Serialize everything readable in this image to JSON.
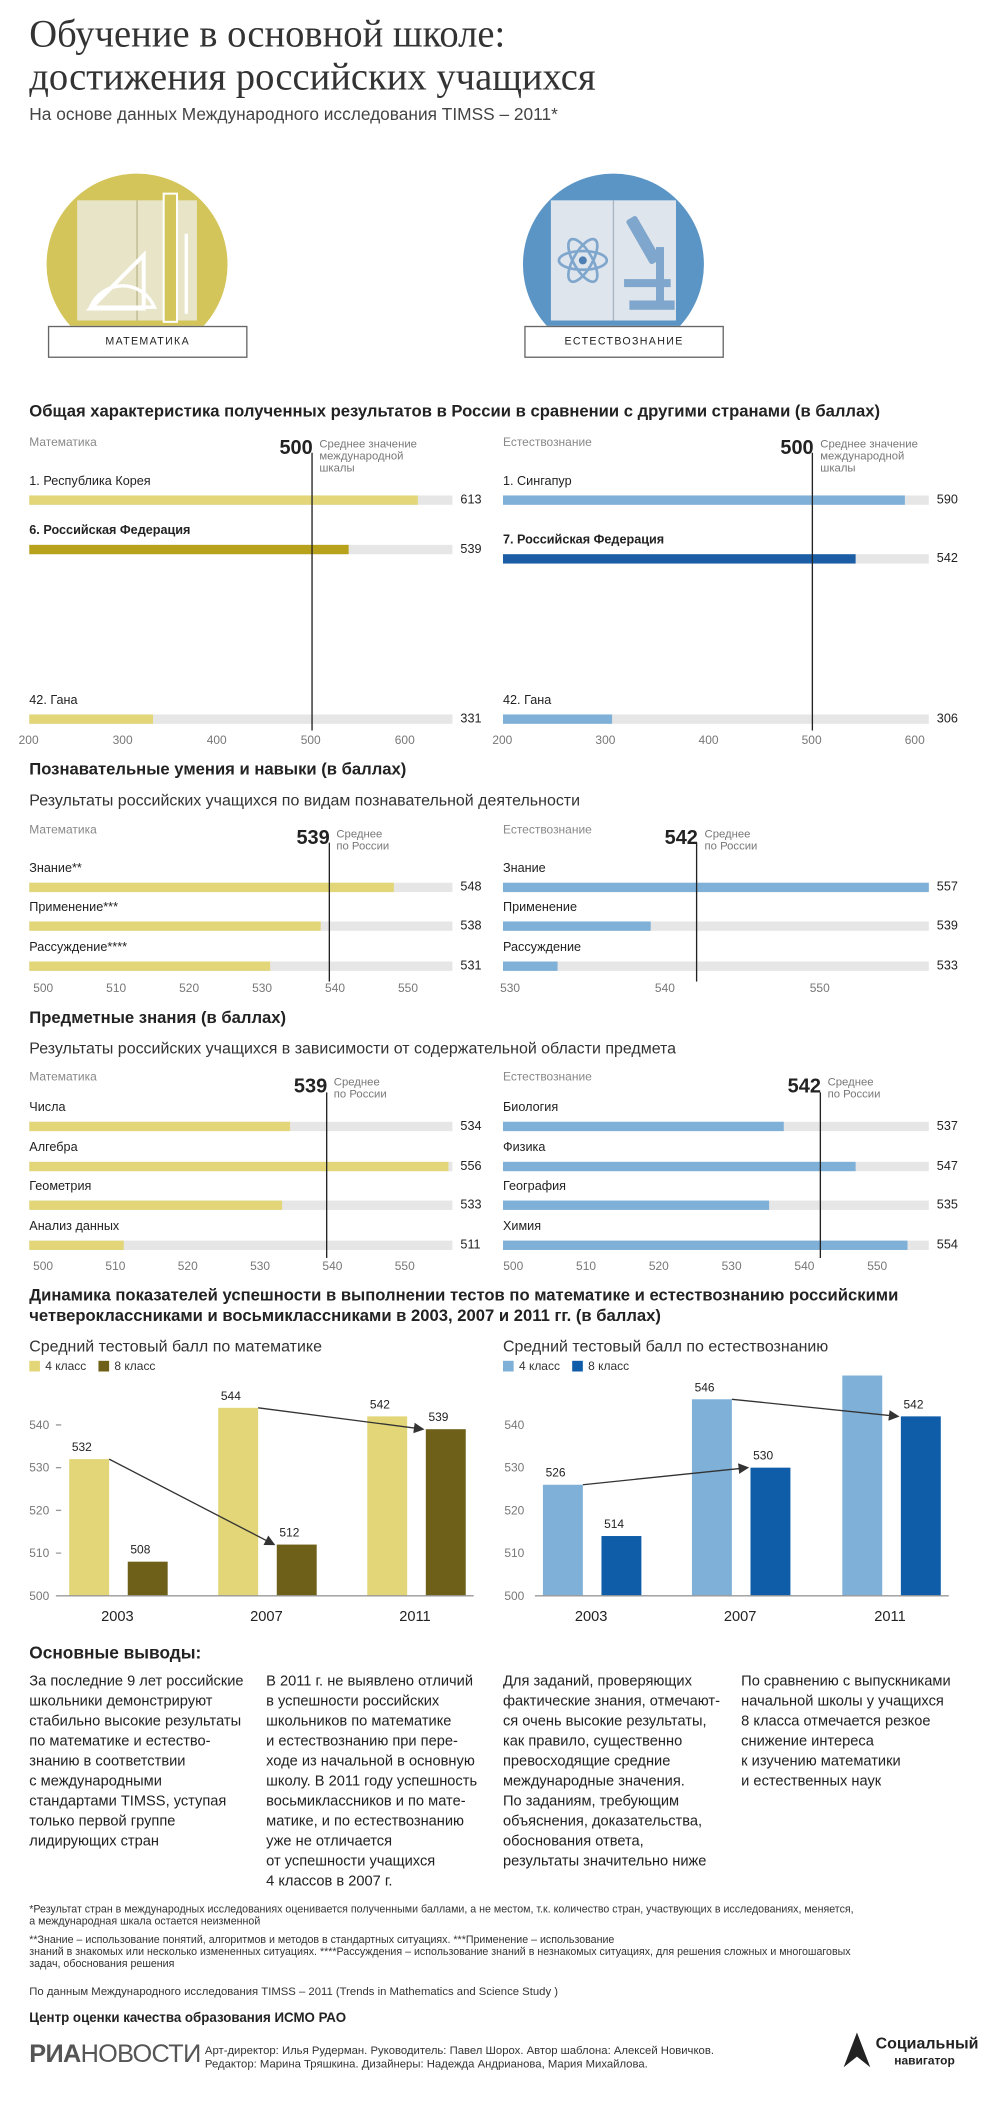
{
  "header": {
    "title_line1": "Обучение в основной школе:",
    "title_line2": "достижения российских учащихся",
    "subtitle": "На основе данных Международного исследования TIMSS – 2011*"
  },
  "icons": {
    "math_label": "МАТЕМАТИКА",
    "science_label": "ЕСТЕСТВОЗНАНИЕ",
    "math_color": "#d4c55a",
    "science_color": "#5b95c5"
  },
  "colors": {
    "math_light": "#e2d678",
    "math_dark": "#b8a21c",
    "sci_light": "#7fb0d8",
    "sci_dark": "#1c5ea5",
    "track": "#e6e6e6",
    "math_8": "#6e6019",
    "sci_8": "#0f5da8"
  },
  "section1": {
    "title": "Общая характеристика полученных результатов в России в сравнении с другими странами (в баллах)",
    "avg_value": "500",
    "avg_label_line1": "Среднее значение",
    "avg_label_line2": "международной",
    "avg_label_line3": "шкалы",
    "math": {
      "panel_label": "Математика",
      "rows": [
        {
          "label": "1. Республика Корея",
          "value": 613
        },
        {
          "label": "6. Российская Федерация",
          "value": 539
        },
        {
          "label": "42. Гана",
          "value": 331
        }
      ]
    },
    "science": {
      "panel_label": "Естествознание",
      "rows": [
        {
          "label": "1. Сингапур",
          "value": 590
        },
        {
          "label": "7. Российская Федерация",
          "value": 542
        },
        {
          "label": "42. Гана",
          "value": 306
        }
      ]
    },
    "ticks": [
      "200",
      "300",
      "400",
      "500",
      "600"
    ]
  },
  "section2": {
    "title": "Познавательные умения и навыки (в баллах)",
    "subtitle": "Результаты российских учащихся по видам познавательной деятельности",
    "avg_label_line1": "Среднее",
    "avg_label_line2": "по России",
    "math": {
      "panel_label": "Математика",
      "avg": "539",
      "rows": [
        {
          "label": "Знание**",
          "value": 548
        },
        {
          "label": "Применение***",
          "value": 538
        },
        {
          "label": "Рассуждение****",
          "value": 531
        }
      ],
      "ticks": [
        "500",
        "510",
        "520",
        "530",
        "540",
        "550"
      ]
    },
    "science": {
      "panel_label": "Естествознание",
      "avg": "542",
      "rows": [
        {
          "label": "Знание",
          "value": 557
        },
        {
          "label": "Применение",
          "value": 539
        },
        {
          "label": "Рассуждение",
          "value": 533
        }
      ],
      "ticks": [
        "530",
        "540",
        "550"
      ]
    }
  },
  "section3": {
    "title": "Предметные знания (в баллах)",
    "subtitle": "Результаты российских учащихся в зависимости от содержательной области предмета",
    "avg_label_line1": "Среднее",
    "avg_label_line2": "по России",
    "math": {
      "panel_label": "Математика",
      "avg": "539",
      "rows": [
        {
          "label": "Числа",
          "value": 534
        },
        {
          "label": "Алгебра",
          "value": 556
        },
        {
          "label": "Геометрия",
          "value": 533
        },
        {
          "label": "Анализ данных",
          "value": 511
        }
      ],
      "ticks": [
        "500",
        "510",
        "520",
        "530",
        "540",
        "550"
      ]
    },
    "science": {
      "panel_label": "Естествознание",
      "avg": "542",
      "rows": [
        {
          "label": "Биология",
          "value": 537
        },
        {
          "label": "Физика",
          "value": 547
        },
        {
          "label": "География",
          "value": 535
        },
        {
          "label": "Химия",
          "value": 554
        }
      ],
      "ticks": [
        "500",
        "510",
        "520",
        "530",
        "540",
        "550"
      ]
    }
  },
  "section4": {
    "title_line1": "Динамика показателей успешности в выполнении тестов по математике и естествознанию российскими",
    "title_line2": "четвероклассниками и восьмиклассниками в 2003, 2007 и 2011 гг. (в баллах)",
    "math_title": "Средний тестовый балл по математике",
    "sci_title": "Средний тестовый балл по естествознанию",
    "legend4": "4 класс",
    "legend8": "8 класс",
    "yticks": [
      "500",
      "510",
      "520",
      "530",
      "540"
    ]
  },
  "chart_data": [
    {
      "type": "bar",
      "title": "Общая характеристика полученных результатов в России в сравнении с другими странами (в баллах)",
      "xlabel": "Математика",
      "categories": [
        "1. Республика Корея",
        "6. Российская Федерация",
        "42. Гана"
      ],
      "values": [
        613,
        539,
        331
      ],
      "xlim": [
        200,
        630
      ],
      "reference_line": 500
    },
    {
      "type": "bar",
      "xlabel": "Естествознание",
      "categories": [
        "1. Сингапур",
        "7. Российская Федерация",
        "42. Гана"
      ],
      "values": [
        590,
        542,
        306
      ],
      "xlim": [
        200,
        630
      ],
      "reference_line": 500
    },
    {
      "type": "bar",
      "title": "Познавательные умения и навыки (в баллах)",
      "xlabel": "Математика",
      "categories": [
        "Знание**",
        "Применение***",
        "Рассуждение****"
      ],
      "values": [
        548,
        538,
        531
      ],
      "xlim": [
        500,
        558
      ],
      "reference_line": 539
    },
    {
      "type": "bar",
      "xlabel": "Естествознание",
      "categories": [
        "Знание",
        "Применение",
        "Рассуждение"
      ],
      "values": [
        557,
        539,
        533
      ],
      "xlim": [
        530,
        558
      ],
      "reference_line": 542
    },
    {
      "type": "bar",
      "title": "Предметные знания (в баллах)",
      "xlabel": "Математика",
      "categories": [
        "Числа",
        "Алгебра",
        "Геометрия",
        "Анализ данных"
      ],
      "values": [
        534,
        556,
        533,
        511
      ],
      "xlim": [
        500,
        558
      ],
      "reference_line": 539
    },
    {
      "type": "bar",
      "xlabel": "Естествознание",
      "categories": [
        "Биология",
        "Физика",
        "География",
        "Химия"
      ],
      "values": [
        537,
        547,
        535,
        554
      ],
      "xlim": [
        500,
        555
      ],
      "reference_line": 542
    },
    {
      "type": "bar",
      "title": "Средний тестовый балл по математике",
      "categories": [
        "2003",
        "2007",
        "2011"
      ],
      "series": [
        {
          "name": "4 класс",
          "values": [
            532,
            544,
            542
          ]
        },
        {
          "name": "8 класс",
          "values": [
            508,
            512,
            539
          ]
        }
      ],
      "ylim": [
        500,
        546
      ]
    },
    {
      "type": "bar",
      "title": "Средний тестовый балл по естествознанию",
      "categories": [
        "2003",
        "2007",
        "2011"
      ],
      "series": [
        {
          "name": "4 класс",
          "values": [
            526,
            546,
            552
          ]
        },
        {
          "name": "8 класс",
          "values": [
            514,
            530,
            542
          ]
        }
      ],
      "ylim": [
        500,
        552
      ]
    }
  ],
  "conclusions": {
    "title": "Основные выводы:",
    "col1": [
      "За последние 9 лет российские",
      "школьники демонстрируют",
      "стабильно высокие результаты",
      "по математике и естество-",
      "знанию в соответствии",
      "с международными",
      "стандартами TIMSS, уступая",
      "только первой группе",
      "лидирующих стран"
    ],
    "col2": [
      "В 2011 г. не выявлено отличий",
      "в успешности российских",
      "школьников по математике",
      "и естествознанию при пере-",
      "ходе из начальной в основную",
      "школу. В 2011 году успешность",
      "восьмиклассников и по мате-",
      "матике, и по естествознанию",
      "уже не отличается",
      "от успешности учащихся",
      "4 классов в 2007 г."
    ],
    "col3": [
      "Для заданий, проверяющих",
      "фактические знания, отмечают-",
      "ся очень высокие результаты,",
      "как правило, существенно",
      "превосходящие средние",
      "международные значения.",
      "По заданиям, требующим",
      "объяснения, доказательства,",
      "обоснования ответа,",
      "результаты значительно ниже"
    ],
    "col4": [
      "По сравнению с выпускниками",
      "начальной школы у учащихся",
      "8 класса отмечается резкое",
      "снижение интереса",
      "к изучению математики",
      "и естественных наук"
    ]
  },
  "footnotes": {
    "f1_line1": "*Результат стран в международных исследованиях оценивается полученными баллами, а не местом, т.к. количество стран, участвующих в исследованиях, меняется,",
    "f1_line2": "а международная шкала остается неизменной",
    "f2_line1": "**Знание – использование понятий, алгоритмов и методов в стандартных ситуациях. ***Применение – использование",
    "f2_line2": "знаний в знакомых или несколько измененных ситуациях. ****Рассуждения – использование знаний в незнакомых ситуациях, для решения сложных и многошаговых",
    "f2_line3": "задач, обоснования решения",
    "source": "По данным Международного исследования  TIMSS – 2011 (Trends in Mathematics and Science Study )",
    "center": "Центр оценки качества образования ИСМО РАО"
  },
  "credits": {
    "logo_ria": "РИА",
    "logo_novosti": "НОВОСТИ",
    "line1": "Арт-директор: Илья Рудерман. Руководитель: Павел Шорох. Автор шаблона: Алексей Новичков.",
    "line2": "Редактор: Марина Тряшкина. Дизайнеры: Надежда Андрианова, Мария Михайлова.",
    "nav_line1": "Социальный",
    "nav_line2": "навигатор"
  }
}
